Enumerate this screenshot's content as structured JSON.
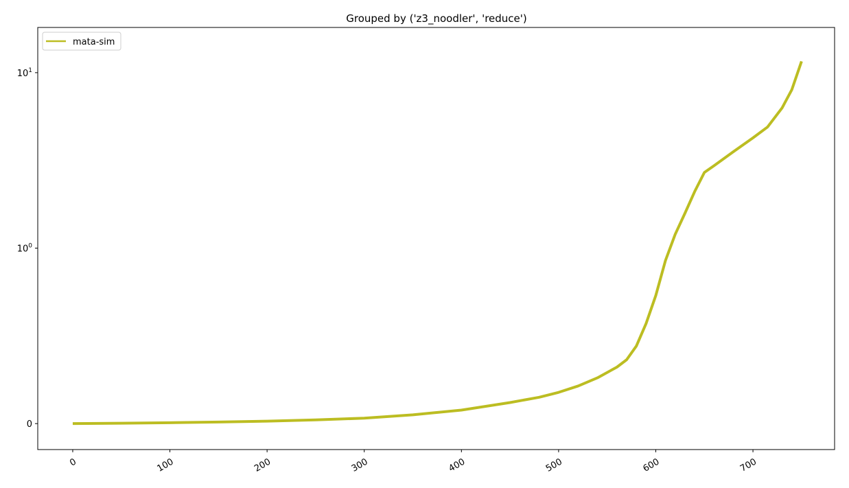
{
  "chart_data": {
    "type": "line",
    "title": "Grouped by ('z3_noodler', 'reduce')",
    "xlabel": "",
    "ylabel": "",
    "xlim": [
      -36,
      784
    ],
    "x_ticks": [
      0,
      100,
      200,
      300,
      400,
      500,
      600,
      700
    ],
    "x_tick_labels": [
      "0",
      "100",
      "200",
      "300",
      "400",
      "500",
      "600",
      "700"
    ],
    "y_scale": "symlog",
    "y_linthresh": 1,
    "ylim": [
      -0.148,
      18.1
    ],
    "y_ticks": [
      0,
      1,
      10
    ],
    "y_tick_labels": [
      {
        "base": "0",
        "exp": ""
      },
      {
        "base": "10",
        "exp": "0"
      },
      {
        "base": "10",
        "exp": "1"
      }
    ],
    "legend_position": "upper-left",
    "grid": false,
    "series": [
      {
        "name": "mata-sim",
        "color": "#bcbd22",
        "x": [
          0,
          50,
          100,
          150,
          200,
          250,
          300,
          350,
          400,
          450,
          480,
          500,
          520,
          540,
          560,
          570,
          580,
          590,
          600,
          610,
          620,
          630,
          640,
          650,
          660,
          680,
          700,
          715,
          730,
          740,
          750
        ],
        "y": [
          0,
          0.002,
          0.005,
          0.009,
          0.014,
          0.021,
          0.031,
          0.05,
          0.077,
          0.12,
          0.15,
          0.178,
          0.214,
          0.261,
          0.322,
          0.364,
          0.442,
          0.57,
          0.73,
          0.93,
          1.2,
          1.58,
          2.1,
          2.7,
          2.95,
          3.55,
          4.25,
          4.9,
          6.3,
          8.0,
          11.6
        ]
      }
    ]
  }
}
